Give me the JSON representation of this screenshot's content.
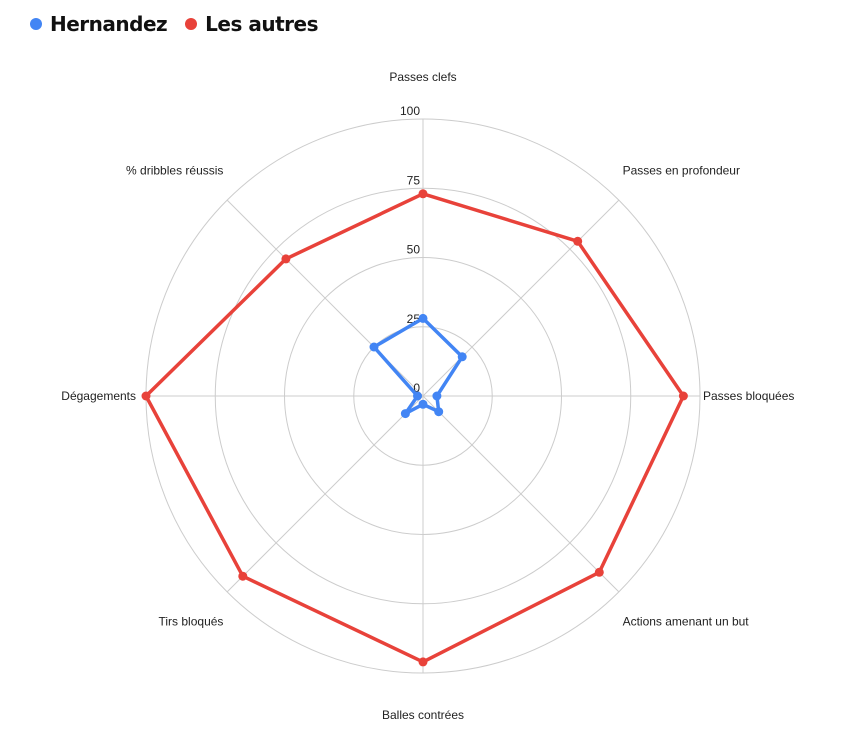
{
  "chart_data": {
    "type": "radar",
    "categories": [
      "Passes clefs",
      "Passes en profondeur",
      "Passes bloquées",
      "Actions amenant un but",
      "Balles contrées",
      "Tirs bloqués",
      "Dégagements",
      "% dribbles réussis"
    ],
    "series": [
      {
        "name": "Hernandez",
        "color": "#4285f4",
        "values": [
          28,
          20,
          5,
          8,
          3,
          9,
          2,
          25
        ]
      },
      {
        "name": "Les autres",
        "color": "#e8423a",
        "values": [
          73,
          79,
          94,
          90,
          96,
          92,
          100,
          70
        ]
      }
    ],
    "ticks": [
      0,
      25,
      50,
      75,
      100
    ],
    "rlim": [
      0,
      100
    ],
    "grid": true,
    "legend_position": "top-left"
  }
}
